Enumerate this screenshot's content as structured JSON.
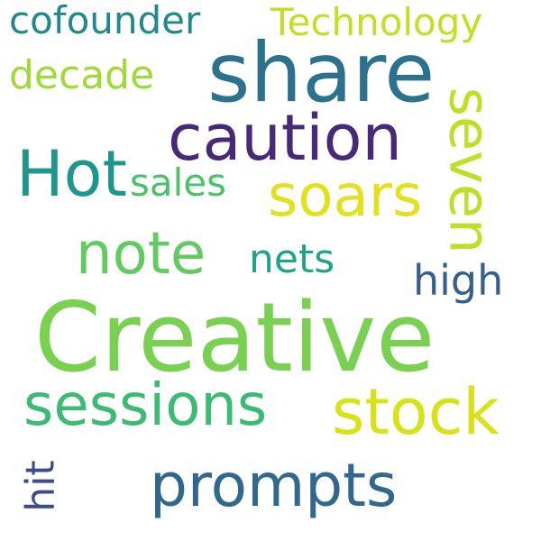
{
  "words": [
    {
      "text": "Creative",
      "color": "#7ad151"
    },
    {
      "text": "share",
      "color": "#2c728e"
    },
    {
      "text": "caution",
      "color": "#482878"
    },
    {
      "text": "Hot",
      "color": "#1f968b"
    },
    {
      "text": "soars",
      "color": "#e1e11d"
    },
    {
      "text": "seven",
      "color": "#bddf26"
    },
    {
      "text": "note",
      "color": "#62cb5f"
    },
    {
      "text": "sessions",
      "color": "#3cbb75"
    },
    {
      "text": "stock",
      "color": "#d8e219"
    },
    {
      "text": "prompts",
      "color": "#31688e"
    },
    {
      "text": "cofounder",
      "color": "#23888e"
    },
    {
      "text": "Technology",
      "color": "#c2df23"
    },
    {
      "text": "decade",
      "color": "#a0da39"
    },
    {
      "text": "sales",
      "color": "#4ac16d"
    },
    {
      "text": "nets",
      "color": "#20a386"
    },
    {
      "text": "high",
      "color": "#355f8d"
    },
    {
      "text": "hit",
      "color": "#3e4a89"
    }
  ]
}
